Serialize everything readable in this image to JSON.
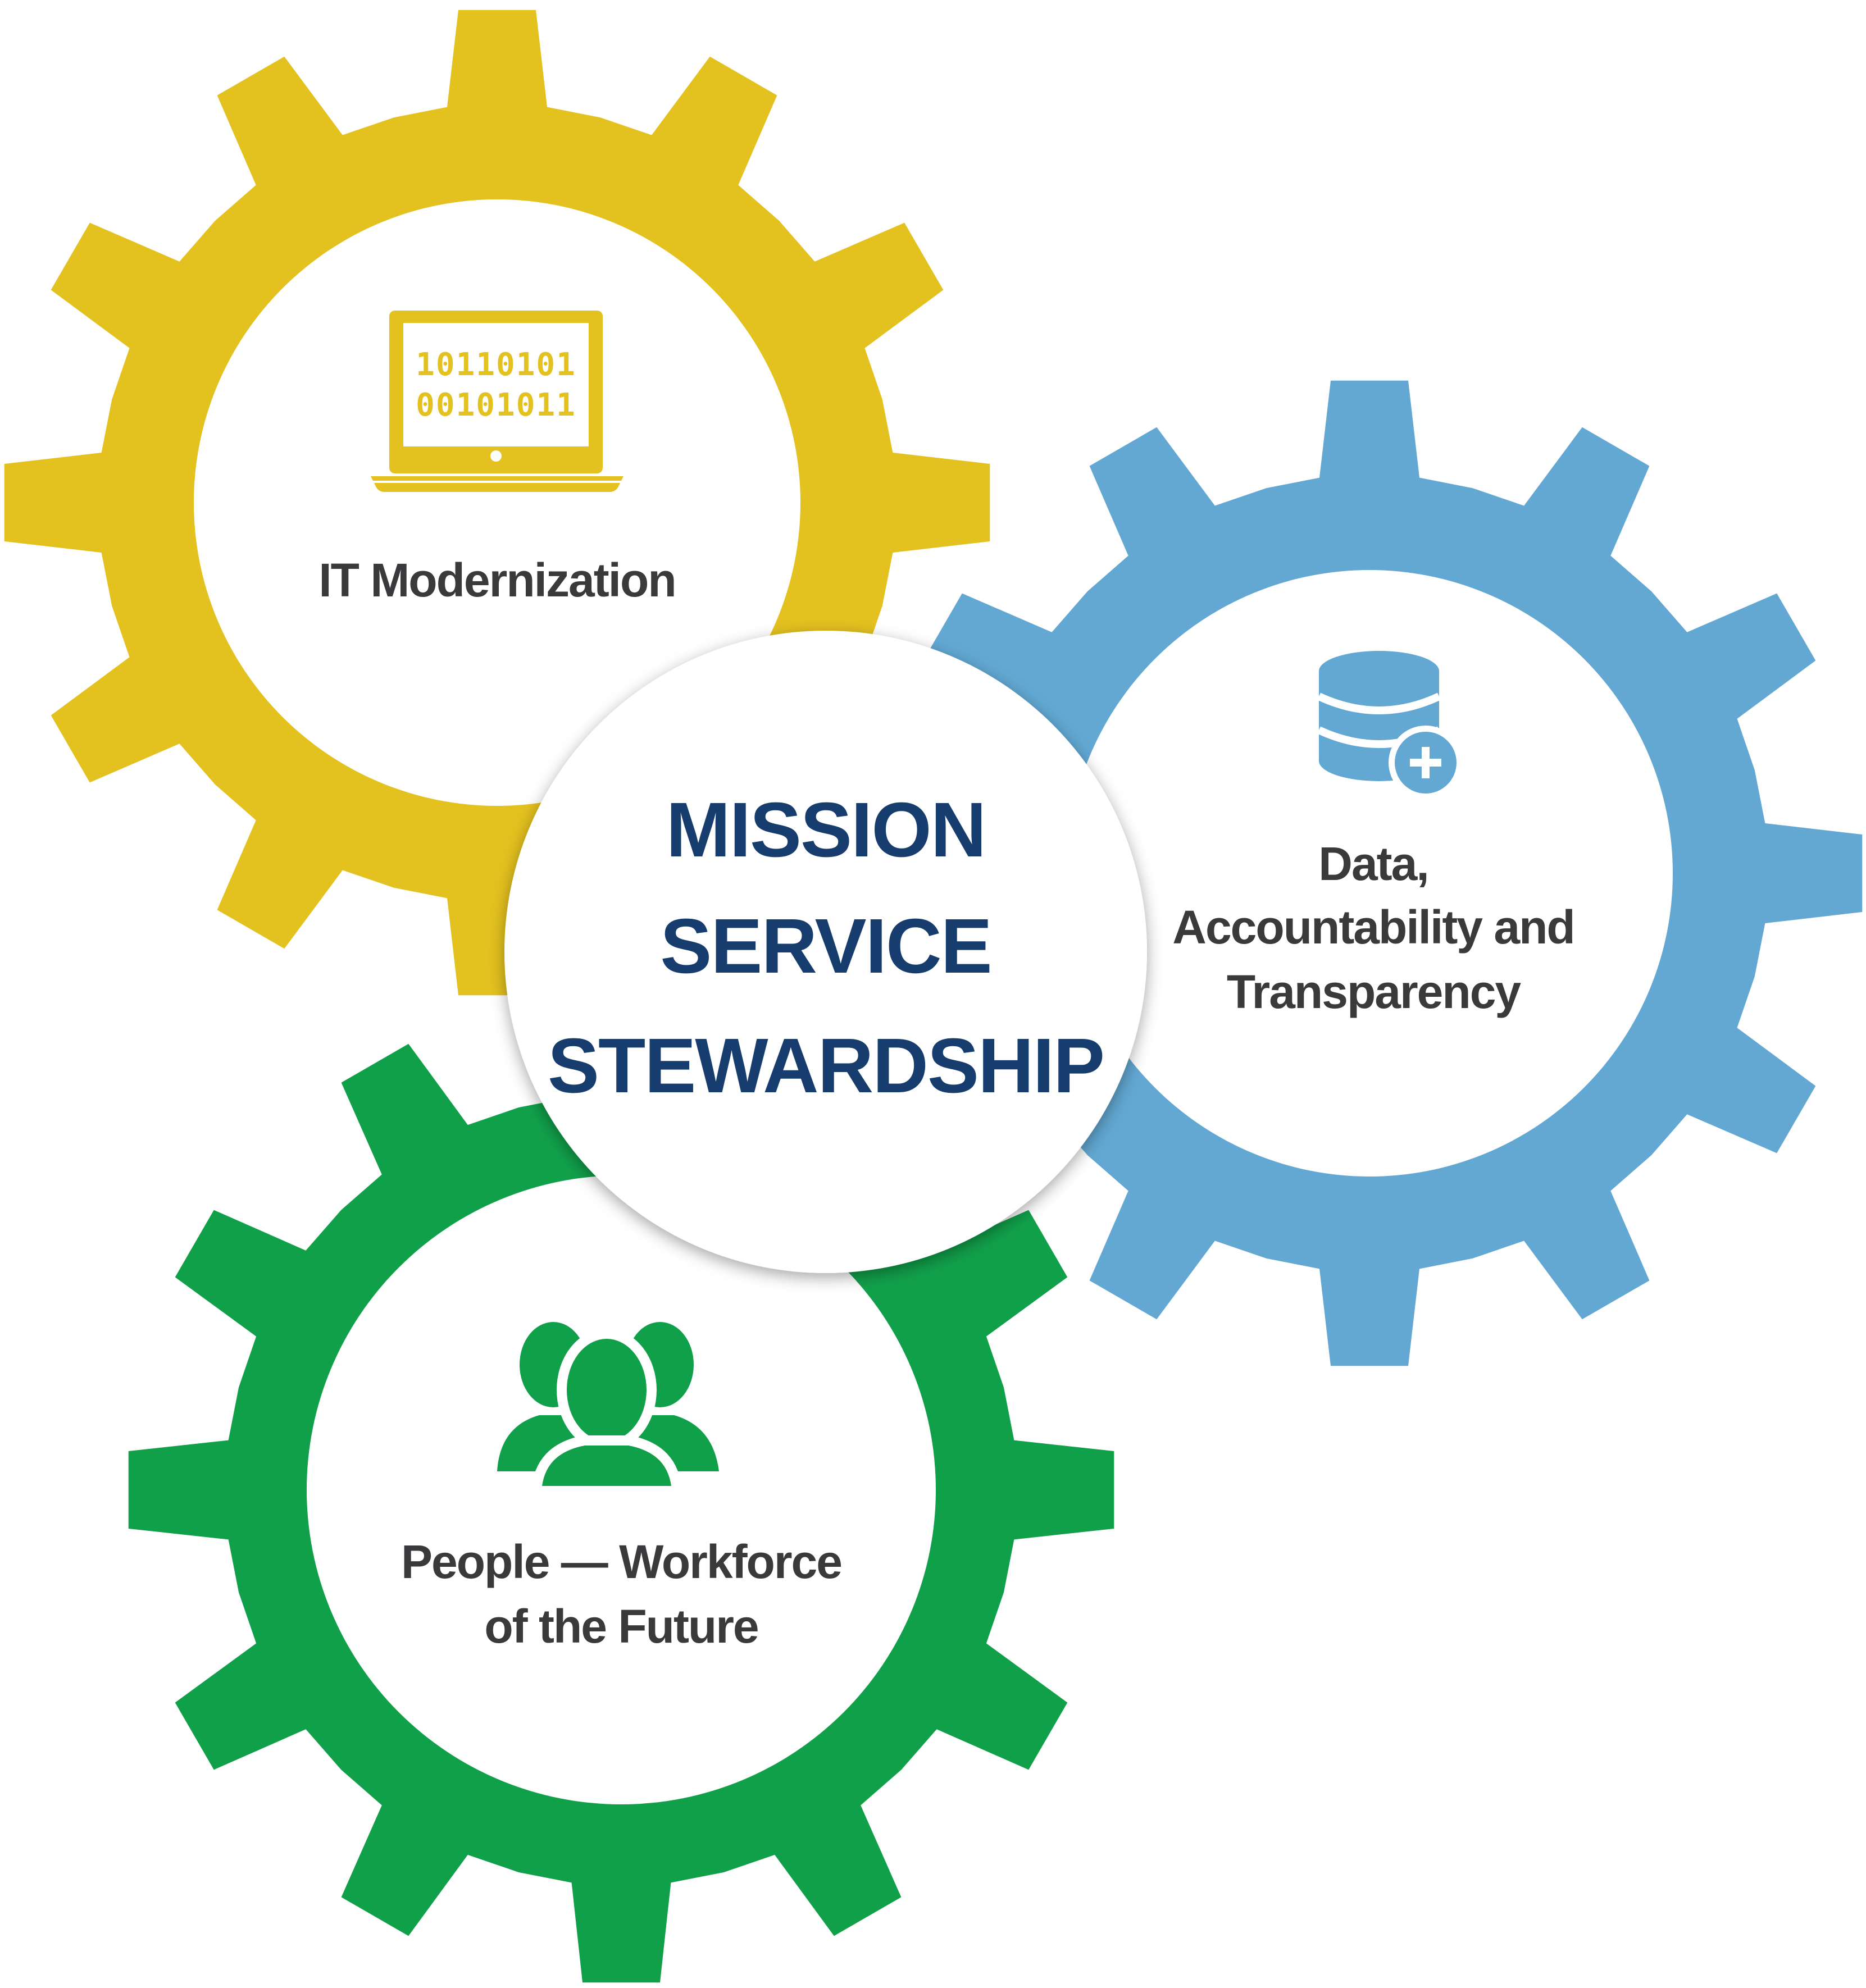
{
  "center": {
    "lines": [
      "MISSION",
      "SERVICE",
      "STEWARDSHIP"
    ],
    "text_color": "#173c6e"
  },
  "gears": [
    {
      "id": "it",
      "label_lines": [
        "IT Modernization"
      ],
      "color": "#e3c11f",
      "icon": "laptop-binary-icon",
      "icon_text": [
        "10110101",
        "00101011"
      ]
    },
    {
      "id": "data",
      "label_lines": [
        "Data,",
        "Accountability and",
        "Transparency"
      ],
      "color": "#62a8d2",
      "icon": "database-plus-icon"
    },
    {
      "id": "people",
      "label_lines": [
        "People — Workforce",
        "of the Future"
      ],
      "color": "#11a04a",
      "icon": "people-group-icon"
    }
  ]
}
